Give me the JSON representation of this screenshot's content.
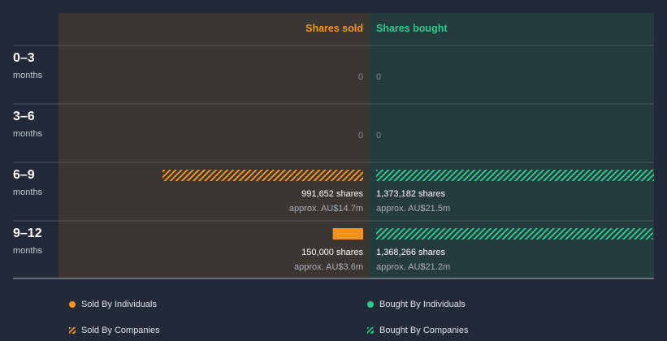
{
  "colors": {
    "sold": "#f7931e",
    "bought": "#2ec98a",
    "sold_panel": "#3a3634",
    "bought_panel": "#253c3f"
  },
  "chart_data": {
    "type": "bar",
    "orientation": "horizontal-diverging",
    "column_headers": {
      "sold": "Shares sold",
      "bought": "Shares bought"
    },
    "periods": [
      {
        "label": "0–3",
        "unit": "months",
        "sold": {
          "by_individuals": 0,
          "by_companies": 0,
          "shares_label": "0",
          "approx_label": ""
        },
        "bought": {
          "by_individuals": 0,
          "by_companies": 0,
          "shares_label": "0",
          "approx_label": ""
        }
      },
      {
        "label": "3–6",
        "unit": "months",
        "sold": {
          "by_individuals": 0,
          "by_companies": 0,
          "shares_label": "0",
          "approx_label": ""
        },
        "bought": {
          "by_individuals": 0,
          "by_companies": 0,
          "shares_label": "0",
          "approx_label": ""
        }
      },
      {
        "label": "6–9",
        "unit": "months",
        "sold": {
          "by_individuals": 0,
          "by_companies": 991652,
          "shares_label": "991,652 shares",
          "approx_label": "approx. AU$14.7m"
        },
        "bought": {
          "by_individuals": 0,
          "by_companies": 1373182,
          "shares_label": "1,373,182 shares",
          "approx_label": "approx. AU$21.5m"
        }
      },
      {
        "label": "9–12",
        "unit": "months",
        "sold": {
          "by_individuals": 150000,
          "by_companies": 0,
          "shares_label": "150,000 shares",
          "approx_label": "approx. AU$3.6m"
        },
        "bought": {
          "by_individuals": 0,
          "by_companies": 1368266,
          "shares_label": "1,368,266 shares",
          "approx_label": "approx. AU$21.2m"
        }
      }
    ],
    "legend": [
      {
        "label": "Sold By Individuals",
        "color": "#f7931e",
        "style": "solid"
      },
      {
        "label": "Bought By Individuals",
        "color": "#2ec98a",
        "style": "solid"
      },
      {
        "label": "Sold By Companies",
        "color": "#f7931e",
        "style": "hatched"
      },
      {
        "label": "Bought By Companies",
        "color": "#2ec98a",
        "style": "hatched"
      }
    ]
  }
}
